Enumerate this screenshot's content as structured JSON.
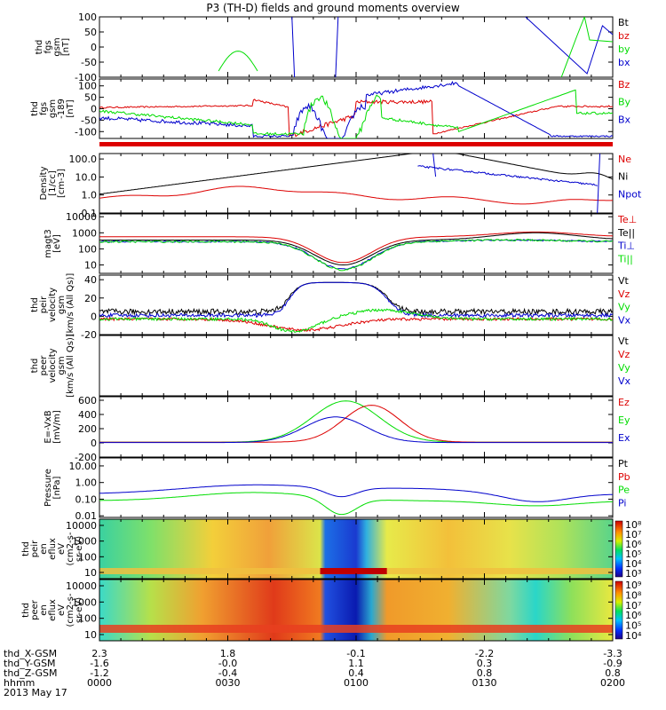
{
  "title": "P3 (TH-D) fields and ground moments overview",
  "colors": {
    "black": "#000000",
    "red": "#dd0000",
    "green": "#00dd00",
    "blue": "#0000cc",
    "frame": "#000000"
  },
  "panels": [
    {
      "ylabel_lines": [
        "thd",
        "fgs",
        "gsm",
        "[nT]"
      ],
      "ylim": [
        -100,
        100
      ],
      "yticks": [
        "100",
        "50",
        "0",
        "-50",
        "-100"
      ],
      "legend": [
        {
          "text": "Bt",
          "color": "black"
        },
        {
          "text": "bz",
          "color": "red"
        },
        {
          "text": "by",
          "color": "green"
        },
        {
          "text": "bx",
          "color": "blue"
        }
      ]
    },
    {
      "ylabel_lines": [
        "thd",
        "fgs",
        "gsm",
        "-189",
        "[nT]"
      ],
      "ylim": [
        -130,
        130
      ],
      "yticks": [
        "100",
        "50",
        "0",
        "-50",
        "-100"
      ],
      "legend": [
        {
          "text": "Bz",
          "color": "red"
        },
        {
          "text": "By",
          "color": "green"
        },
        {
          "text": "Bx",
          "color": "blue"
        }
      ]
    },
    {
      "ylabel_lines": [
        "Density",
        "[1/cc]",
        "[cm-3]"
      ],
      "ylim": [
        0.1,
        200
      ],
      "scale": "log",
      "yticks": [
        "100.0",
        "10.0",
        "1.0",
        "0.1"
      ],
      "legend": [
        {
          "text": "Ne",
          "color": "red"
        },
        {
          "text": "Ni",
          "color": "black"
        },
        {
          "text": "Npot",
          "color": "blue"
        }
      ]
    },
    {
      "ylabel_lines": [
        "magt3",
        "[eV]"
      ],
      "ylim": [
        3,
        15000
      ],
      "scale": "log",
      "yticks": [
        "10000",
        "1000",
        "100",
        "10"
      ],
      "legend": [
        {
          "text": "Te⊥",
          "color": "red"
        },
        {
          "text": "Te||",
          "color": "black"
        },
        {
          "text": "Ti⊥",
          "color": "blue"
        },
        {
          "text": "Ti||",
          "color": "green"
        }
      ]
    },
    {
      "ylabel_lines": [
        "thd",
        "peir",
        "velocity",
        "gsm",
        "[km/s (All Qs)]"
      ],
      "ylim": [
        -20,
        45
      ],
      "yticks": [
        "40",
        "20",
        "0",
        "-20"
      ],
      "legend": [
        {
          "text": "Vt",
          "color": "black"
        },
        {
          "text": "Vz",
          "color": "red"
        },
        {
          "text": "Vy",
          "color": "green"
        },
        {
          "text": "Vx",
          "color": "blue"
        }
      ]
    },
    {
      "ylabel_lines": [
        "thd",
        "peer",
        "velocity",
        "gsm",
        "[km/s (All Qs)]"
      ],
      "ylim": [
        0,
        1
      ],
      "yticks": [],
      "legend": [
        {
          "text": "Vt",
          "color": "black"
        },
        {
          "text": "Vz",
          "color": "red"
        },
        {
          "text": "Vy",
          "color": "green"
        },
        {
          "text": "Vx",
          "color": "blue"
        }
      ]
    },
    {
      "ylabel_lines": [
        "E=-VxB",
        "[mV/m]"
      ],
      "ylim": [
        -200,
        650
      ],
      "yticks": [
        "600",
        "400",
        "200",
        "0",
        "-200"
      ],
      "legend": [
        {
          "text": "Ez",
          "color": "red"
        },
        {
          "text": "Ey",
          "color": "green"
        },
        {
          "text": "Ex",
          "color": "blue"
        }
      ]
    },
    {
      "ylabel_lines": [
        "Pressure",
        "[nPa]"
      ],
      "ylim": [
        0.008,
        30
      ],
      "scale": "log",
      "yticks": [
        "10.00",
        "1.00",
        "0.10",
        "0.01"
      ],
      "legend": [
        {
          "text": "Pt",
          "color": "black"
        },
        {
          "text": "Pb",
          "color": "red"
        },
        {
          "text": "Pe",
          "color": "green"
        },
        {
          "text": "Pi",
          "color": "blue"
        }
      ]
    },
    {
      "ylabel_lines": [
        "thd",
        "peir",
        "en",
        "eflux",
        "eV",
        "(cm2-s-",
        "sr-eV)"
      ],
      "yticks": [
        "10000",
        "1000",
        "100",
        "10"
      ],
      "colorbar_ticks": [
        "10⁸",
        "10⁷",
        "10⁶",
        "10⁵",
        "10⁴",
        "10³"
      ]
    },
    {
      "ylabel_lines": [
        "thd",
        "peer",
        "en",
        "eflux",
        "eV",
        "(cm2-s-",
        "sr-eV)"
      ],
      "yticks": [
        "10000",
        "1000",
        "100",
        "10"
      ],
      "colorbar_ticks": [
        "10⁹",
        "10⁸",
        "10⁷",
        "10⁶",
        "10⁵",
        "10⁴"
      ]
    }
  ],
  "xaxis": {
    "rows": [
      {
        "label": "thd_X-GSM",
        "values": [
          "2.3",
          "1.8",
          "-0.1",
          "-2.2",
          "-3.3"
        ]
      },
      {
        "label": "thd_Y-GSM",
        "values": [
          "-1.6",
          "-0.0",
          "1.1",
          "0.3",
          "-0.9"
        ]
      },
      {
        "label": "thd_Z-GSM",
        "values": [
          "-1.2",
          "-0.4",
          "0.4",
          "0.8",
          "0.8"
        ]
      },
      {
        "label": "hhmm",
        "values": [
          "0000",
          "0030",
          "0100",
          "0130",
          "0200"
        ]
      }
    ],
    "date": "2013 May 17"
  }
}
